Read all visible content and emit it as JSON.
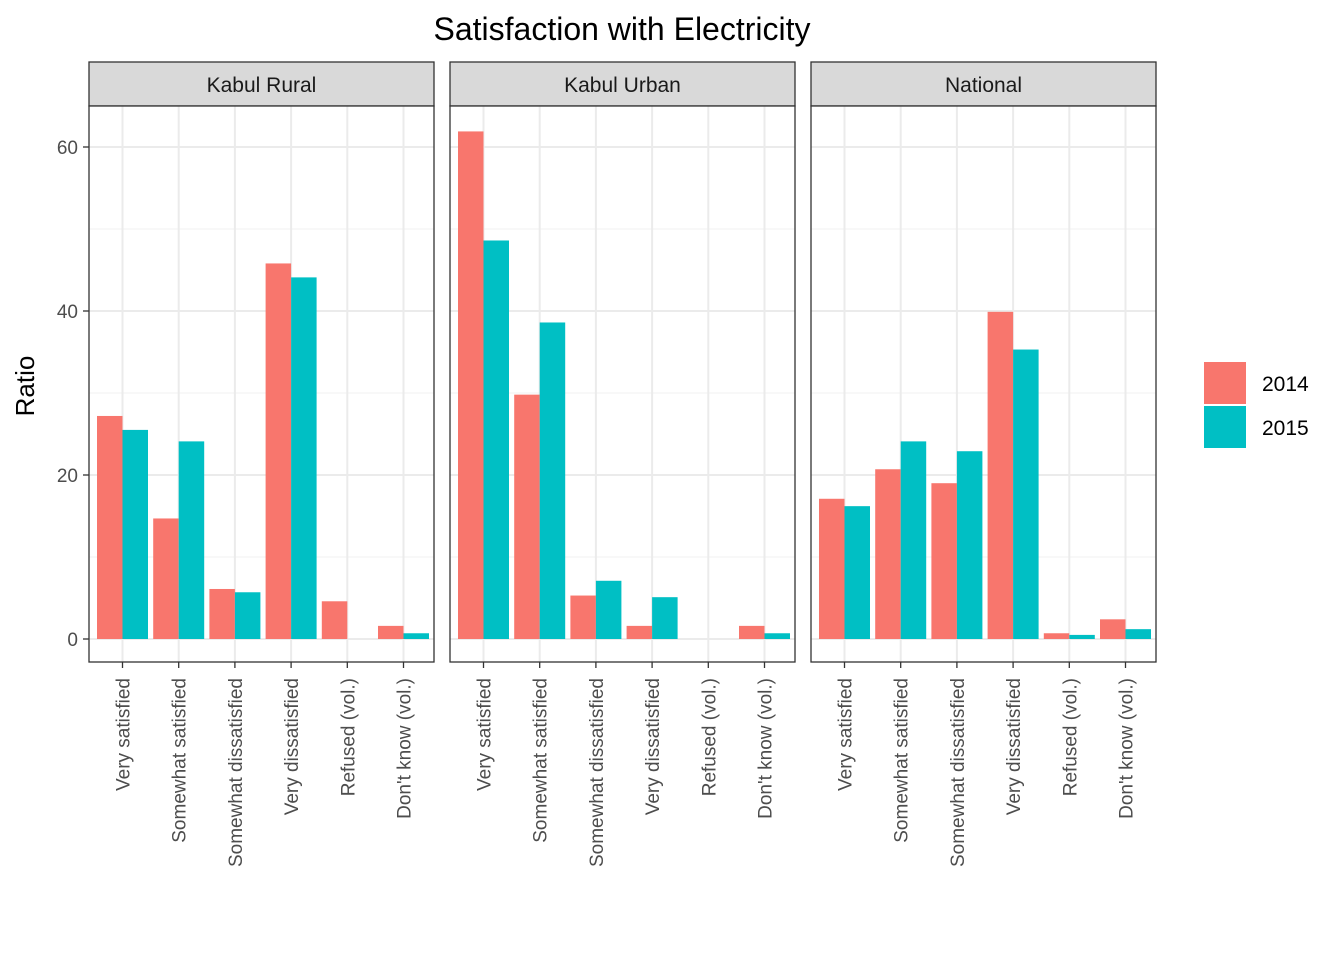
{
  "chart_data": {
    "type": "bar",
    "title": "Satisfaction with Electricity",
    "xlabel": "",
    "ylabel": "Ratio",
    "ylim": [
      -3,
      65
    ],
    "yticks": [
      0,
      20,
      40,
      60
    ],
    "grid": true,
    "legend_position": "right",
    "categories": [
      "Very satisfied",
      "Somewhat satisfied",
      "Somewhat dissatisfied",
      "Very dissatisfied",
      "Refused (vol.)",
      "Don't know (vol.)"
    ],
    "series_names": [
      "2014",
      "2015"
    ],
    "colors": {
      "2014": "#F8766D",
      "2015": "#00BFC4"
    },
    "facets": [
      {
        "name": "Kabul Rural",
        "series": [
          {
            "name": "2014",
            "values": [
              27.2,
              14.7,
              6.1,
              45.8,
              4.6,
              1.6
            ]
          },
          {
            "name": "2015",
            "values": [
              25.5,
              24.1,
              5.7,
              44.1,
              0,
              0.7
            ]
          }
        ]
      },
      {
        "name": "Kabul Urban",
        "series": [
          {
            "name": "2014",
            "values": [
              61.9,
              29.8,
              5.3,
              1.6,
              0,
              1.6
            ]
          },
          {
            "name": "2015",
            "values": [
              48.6,
              38.6,
              7.1,
              5.1,
              0,
              0.7
            ]
          }
        ]
      },
      {
        "name": "National",
        "series": [
          {
            "name": "2014",
            "values": [
              17.1,
              20.7,
              19.0,
              39.9,
              0.7,
              2.4
            ]
          },
          {
            "name": "2015",
            "values": [
              16.2,
              24.1,
              22.9,
              35.3,
              0.5,
              1.2
            ]
          }
        ]
      }
    ]
  }
}
